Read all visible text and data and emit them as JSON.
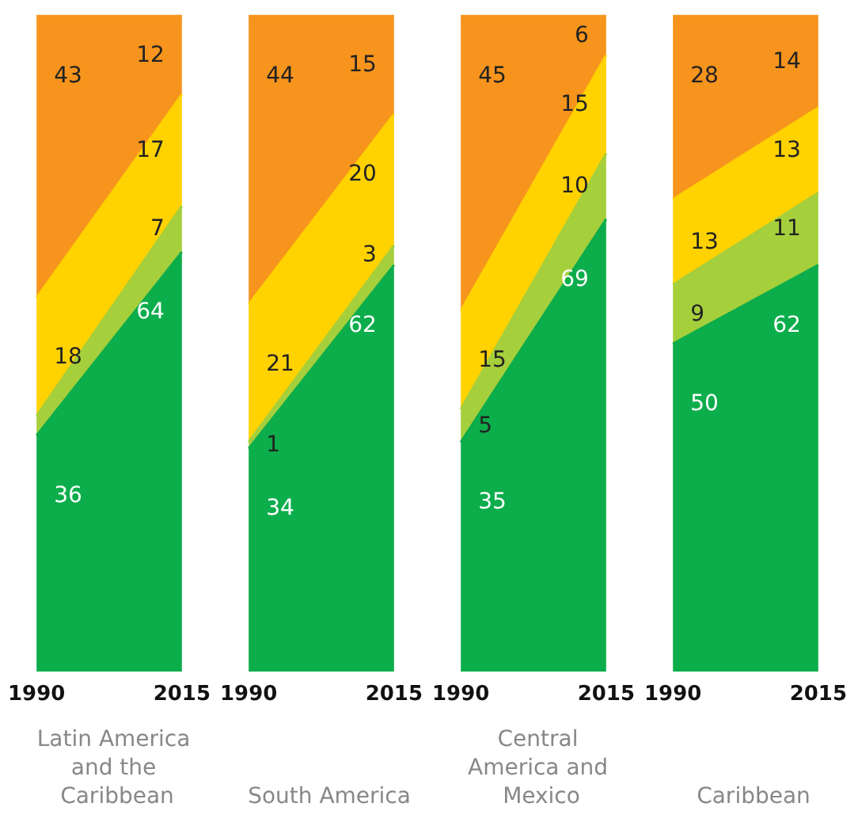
{
  "chart_data": [
    {
      "type": "area",
      "title": "Latin America and the Caribbean",
      "categories": [
        "1990",
        "2015"
      ],
      "stacked": true,
      "tick_labels": "x",
      "series": [
        {
          "color": "#0cad4b",
          "values": [
            36,
            64
          ],
          "value_labels": [
            "36",
            "64"
          ]
        },
        {
          "color": "#a6cf3c",
          "values": [
            3,
            7
          ],
          "value_labels": [
            null,
            "7"
          ]
        },
        {
          "color": "#ffd200",
          "values": [
            18,
            17
          ],
          "value_labels": [
            "18",
            "17"
          ]
        },
        {
          "color": "#f7941d",
          "values": [
            43,
            12
          ],
          "value_labels": [
            "43",
            "12"
          ]
        }
      ]
    },
    {
      "type": "area",
      "title": "South America",
      "categories": [
        "1990",
        "2015"
      ],
      "stacked": true,
      "tick_labels": "x",
      "series": [
        {
          "color": "#0cad4b",
          "values": [
            34,
            62
          ],
          "value_labels": [
            "34",
            "62"
          ]
        },
        {
          "color": "#a6cf3c",
          "values": [
            1,
            3
          ],
          "value_labels": [
            "1",
            "3"
          ]
        },
        {
          "color": "#ffd200",
          "values": [
            21,
            20
          ],
          "value_labels": [
            "21",
            "20"
          ]
        },
        {
          "color": "#f7941d",
          "values": [
            44,
            15
          ],
          "value_labels": [
            "44",
            "15"
          ]
        }
      ]
    },
    {
      "type": "area",
      "title": "Central America and Mexico",
      "categories": [
        "1990",
        "2015"
      ],
      "stacked": true,
      "tick_labels": "x",
      "series": [
        {
          "color": "#0cad4b",
          "values": [
            35,
            69
          ],
          "value_labels": [
            "35",
            "69"
          ]
        },
        {
          "color": "#a6cf3c",
          "values": [
            5,
            10
          ],
          "value_labels": [
            "5",
            "10"
          ]
        },
        {
          "color": "#ffd200",
          "values": [
            15,
            15
          ],
          "value_labels": [
            "15",
            "15"
          ]
        },
        {
          "color": "#f7941d",
          "values": [
            45,
            6
          ],
          "value_labels": [
            "45",
            "6"
          ]
        }
      ]
    },
    {
      "type": "area",
      "title": "Caribbean",
      "categories": [
        "1990",
        "2015"
      ],
      "stacked": true,
      "tick_labels": "x",
      "series": [
        {
          "color": "#0cad4b",
          "values": [
            50,
            62
          ],
          "value_labels": [
            "50",
            "62"
          ]
        },
        {
          "color": "#a6cf3c",
          "values": [
            9,
            11
          ],
          "value_labels": [
            "9",
            "11"
          ]
        },
        {
          "color": "#ffd200",
          "values": [
            13,
            13
          ],
          "value_labels": [
            "13",
            "13"
          ]
        },
        {
          "color": "#f7941d",
          "values": [
            28,
            14
          ],
          "value_labels": [
            "28",
            "14"
          ]
        }
      ]
    }
  ]
}
